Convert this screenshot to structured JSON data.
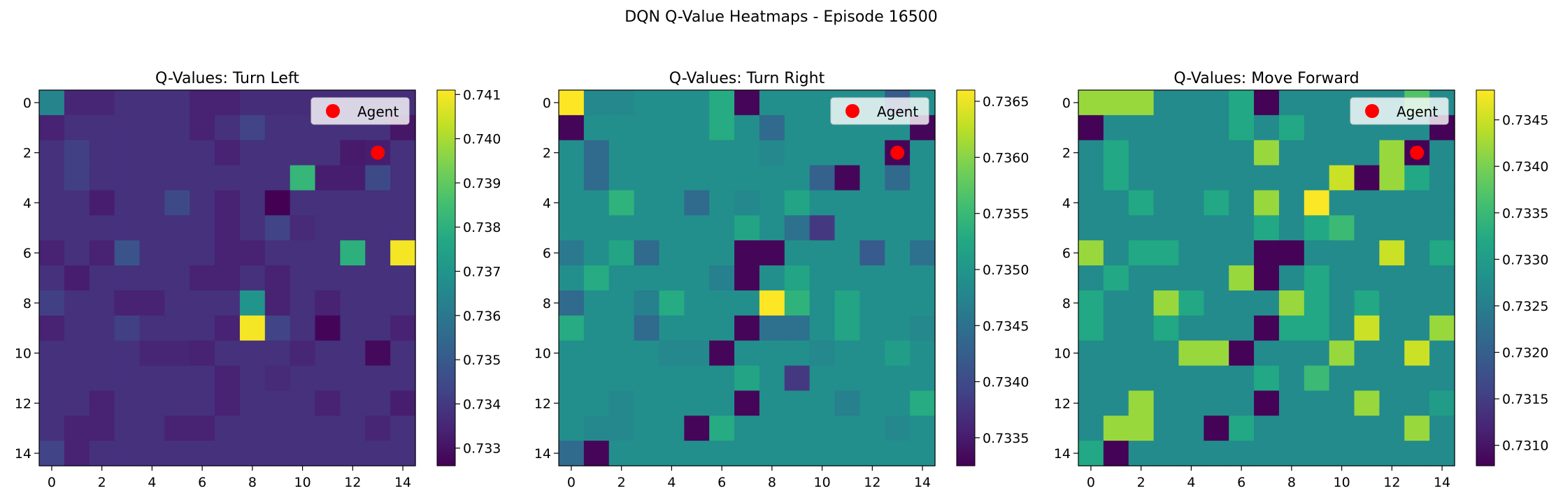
{
  "figure": {
    "title": "DQN Q-Value Heatmaps - Episode 16500"
  },
  "legend_label": "Agent",
  "agent_position": {
    "row": 2,
    "col": 13
  },
  "chart_data": [
    {
      "type": "heatmap",
      "title": "Q-Values: Turn Left",
      "xticks": [
        0,
        2,
        4,
        6,
        8,
        10,
        12,
        14
      ],
      "yticks": [
        0,
        2,
        4,
        6,
        8,
        10,
        12,
        14
      ],
      "colorbar": {
        "min": 0.7326,
        "max": 0.7411,
        "ticks": [
          "0.733",
          "0.734",
          "0.735",
          "0.736",
          "0.737",
          "0.738",
          "0.739",
          "0.740",
          "0.741"
        ]
      },
      "values": [
        [
          0.7364,
          0.7335,
          0.7335,
          0.7338,
          0.7338,
          0.7338,
          0.7334,
          0.7334,
          0.7337,
          0.7337,
          0.7337,
          0.7337,
          0.7337,
          0.7337,
          0.7337
        ],
        [
          0.7334,
          0.7338,
          0.7338,
          0.7338,
          0.7338,
          0.7338,
          0.7334,
          0.7338,
          0.7343,
          0.7338,
          0.7338,
          0.7338,
          0.7338,
          0.7338,
          0.7331
        ],
        [
          0.7338,
          0.7342,
          0.7338,
          0.7338,
          0.7338,
          0.7338,
          0.7338,
          0.7334,
          0.7338,
          0.7338,
          0.7338,
          0.7338,
          0.7332,
          0.7333,
          0.7338
        ],
        [
          0.7338,
          0.7342,
          0.7338,
          0.7338,
          0.7338,
          0.7338,
          0.7338,
          0.7338,
          0.7338,
          0.7338,
          0.7382,
          0.7333,
          0.7333,
          0.7345,
          0.7338
        ],
        [
          0.7338,
          0.7338,
          0.7333,
          0.7338,
          0.7338,
          0.7345,
          0.7338,
          0.7334,
          0.7338,
          0.7326,
          0.7338,
          0.7338,
          0.7338,
          0.7338,
          0.7338
        ],
        [
          0.7338,
          0.7338,
          0.7338,
          0.7338,
          0.7338,
          0.7338,
          0.7338,
          0.7334,
          0.7338,
          0.7343,
          0.7336,
          0.7338,
          0.7338,
          0.7338,
          0.7338
        ],
        [
          0.7334,
          0.7338,
          0.7334,
          0.7348,
          0.7338,
          0.7338,
          0.7338,
          0.7334,
          0.7334,
          0.7338,
          0.7338,
          0.7338,
          0.738,
          0.7338,
          0.741
        ],
        [
          0.7338,
          0.7333,
          0.7338,
          0.7338,
          0.7338,
          0.7338,
          0.7334,
          0.7334,
          0.7338,
          0.7334,
          0.7338,
          0.7338,
          0.7338,
          0.7338,
          0.7338
        ],
        [
          0.7342,
          0.7338,
          0.7338,
          0.7334,
          0.7334,
          0.7338,
          0.7338,
          0.7338,
          0.737,
          0.7334,
          0.7338,
          0.7334,
          0.7338,
          0.7338,
          0.7338
        ],
        [
          0.7334,
          0.7338,
          0.7338,
          0.7342,
          0.7338,
          0.7338,
          0.7338,
          0.7334,
          0.741,
          0.7343,
          0.7338,
          0.7327,
          0.7338,
          0.7338,
          0.7334
        ],
        [
          0.7338,
          0.7338,
          0.7338,
          0.7338,
          0.7335,
          0.7335,
          0.7334,
          0.7338,
          0.7338,
          0.7338,
          0.7335,
          0.7338,
          0.7338,
          0.7328,
          0.7338
        ],
        [
          0.7338,
          0.7338,
          0.7338,
          0.7338,
          0.7338,
          0.7338,
          0.7338,
          0.7334,
          0.7338,
          0.7336,
          0.7338,
          0.7338,
          0.7338,
          0.7338,
          0.7338
        ],
        [
          0.7338,
          0.7338,
          0.7334,
          0.7338,
          0.7338,
          0.7338,
          0.7338,
          0.7334,
          0.7338,
          0.7338,
          0.7338,
          0.7334,
          0.7338,
          0.7338,
          0.7333
        ],
        [
          0.7338,
          0.7334,
          0.7334,
          0.7338,
          0.7338,
          0.7334,
          0.7334,
          0.7338,
          0.7338,
          0.7338,
          0.7338,
          0.7338,
          0.7338,
          0.7335,
          0.7338
        ],
        [
          0.7343,
          0.7334,
          0.7338,
          0.7338,
          0.7338,
          0.7338,
          0.7338,
          0.7338,
          0.7338,
          0.7338,
          0.7338,
          0.7338,
          0.7338,
          0.7338,
          0.7338
        ]
      ]
    },
    {
      "type": "heatmap",
      "title": "Q-Values: Turn Right",
      "xticks": [
        0,
        2,
        4,
        6,
        8,
        10,
        12,
        14
      ],
      "yticks": [
        0,
        2,
        4,
        6,
        8,
        10,
        12,
        14
      ],
      "colorbar": {
        "min": 0.73325,
        "max": 0.7366,
        "ticks": [
          "0.7335",
          "0.7340",
          "0.7345",
          "0.7350",
          "0.7355",
          "0.7360",
          "0.7365"
        ]
      },
      "values": [
        [
          0.7366,
          0.7348,
          0.7348,
          0.7349,
          0.7349,
          0.7349,
          0.7353,
          0.7333,
          0.7349,
          0.7349,
          0.7349,
          0.7349,
          0.7349,
          0.7342,
          0.7349
        ],
        [
          0.7333,
          0.7349,
          0.7349,
          0.7349,
          0.7349,
          0.7349,
          0.7353,
          0.7349,
          0.7344,
          0.7349,
          0.7349,
          0.7349,
          0.7349,
          0.7349,
          0.7333
        ],
        [
          0.7349,
          0.7344,
          0.7349,
          0.7349,
          0.7349,
          0.7349,
          0.7349,
          0.7349,
          0.7348,
          0.7349,
          0.7349,
          0.7349,
          0.7349,
          0.7333,
          0.7349
        ],
        [
          0.7349,
          0.7344,
          0.7349,
          0.7349,
          0.7349,
          0.7349,
          0.7349,
          0.7349,
          0.7349,
          0.7349,
          0.7343,
          0.7333,
          0.7349,
          0.7344,
          0.7349
        ],
        [
          0.7349,
          0.7349,
          0.7354,
          0.7349,
          0.7349,
          0.7344,
          0.7349,
          0.7348,
          0.7349,
          0.7352,
          0.7349,
          0.7349,
          0.7349,
          0.7349,
          0.7349
        ],
        [
          0.7349,
          0.7349,
          0.7349,
          0.7349,
          0.7349,
          0.7349,
          0.7349,
          0.7352,
          0.7349,
          0.7345,
          0.7338,
          0.7349,
          0.7349,
          0.7349,
          0.7349
        ],
        [
          0.7346,
          0.7349,
          0.7352,
          0.7344,
          0.7349,
          0.7349,
          0.7349,
          0.7333,
          0.7333,
          0.7349,
          0.7349,
          0.7349,
          0.7342,
          0.7349,
          0.7345
        ],
        [
          0.7349,
          0.7353,
          0.7349,
          0.7349,
          0.7349,
          0.7349,
          0.7347,
          0.7333,
          0.7349,
          0.7352,
          0.7349,
          0.7349,
          0.7349,
          0.7349,
          0.7349
        ],
        [
          0.7344,
          0.7349,
          0.7349,
          0.7347,
          0.7353,
          0.7349,
          0.7349,
          0.7349,
          0.7366,
          0.7354,
          0.7349,
          0.7352,
          0.7349,
          0.7349,
          0.7349
        ],
        [
          0.7353,
          0.7349,
          0.7349,
          0.7344,
          0.7349,
          0.7349,
          0.7349,
          0.7333,
          0.7345,
          0.7345,
          0.7349,
          0.7352,
          0.7349,
          0.7349,
          0.7348
        ],
        [
          0.7349,
          0.7349,
          0.7349,
          0.7349,
          0.7348,
          0.7348,
          0.7333,
          0.7349,
          0.7349,
          0.7349,
          0.7348,
          0.7349,
          0.7349,
          0.7351,
          0.7349
        ],
        [
          0.7349,
          0.7349,
          0.7349,
          0.7349,
          0.7349,
          0.7349,
          0.7349,
          0.7352,
          0.7349,
          0.7338,
          0.7349,
          0.7349,
          0.7349,
          0.7349,
          0.7349
        ],
        [
          0.7349,
          0.7349,
          0.7348,
          0.7349,
          0.7349,
          0.7349,
          0.7349,
          0.7333,
          0.7349,
          0.7349,
          0.7349,
          0.7347,
          0.7349,
          0.7349,
          0.7353
        ],
        [
          0.7349,
          0.7348,
          0.7348,
          0.7349,
          0.7349,
          0.7333,
          0.7353,
          0.7349,
          0.7349,
          0.7349,
          0.7349,
          0.7349,
          0.7349,
          0.7348,
          0.7349
        ],
        [
          0.7344,
          0.7333,
          0.7349,
          0.7349,
          0.7349,
          0.7349,
          0.7349,
          0.7349,
          0.7349,
          0.7349,
          0.7349,
          0.7349,
          0.7349,
          0.7349,
          0.7349
        ]
      ]
    },
    {
      "type": "heatmap",
      "title": "Q-Values: Move Forward",
      "xticks": [
        0,
        2,
        4,
        6,
        8,
        10,
        12,
        14
      ],
      "yticks": [
        0,
        2,
        4,
        6,
        8,
        10,
        12,
        14
      ],
      "colorbar": {
        "min": 0.73078,
        "max": 0.73482,
        "ticks": [
          "0.7310",
          "0.7315",
          "0.7320",
          "0.7325",
          "0.7330",
          "0.7335",
          "0.7340",
          "0.7345"
        ]
      },
      "values": [
        [
          0.7342,
          0.7342,
          0.7342,
          0.7327,
          0.7327,
          0.7327,
          0.7332,
          0.7308,
          0.7327,
          0.7327,
          0.7327,
          0.7327,
          0.7327,
          0.7337,
          0.7327
        ],
        [
          0.7308,
          0.7327,
          0.7327,
          0.7327,
          0.7327,
          0.7327,
          0.7332,
          0.7327,
          0.7332,
          0.7327,
          0.7327,
          0.7327,
          0.7327,
          0.7327,
          0.7308
        ],
        [
          0.7327,
          0.7332,
          0.7327,
          0.7327,
          0.7327,
          0.7327,
          0.7327,
          0.7342,
          0.7327,
          0.7327,
          0.7327,
          0.7327,
          0.7342,
          0.7308,
          0.7327
        ],
        [
          0.7327,
          0.7332,
          0.7327,
          0.7327,
          0.7327,
          0.7327,
          0.7327,
          0.7327,
          0.7327,
          0.7327,
          0.7345,
          0.7308,
          0.7342,
          0.7332,
          0.7327
        ],
        [
          0.7327,
          0.7327,
          0.7332,
          0.7327,
          0.7327,
          0.7332,
          0.7327,
          0.7342,
          0.7327,
          0.7348,
          0.7327,
          0.7327,
          0.7327,
          0.7327,
          0.7327
        ],
        [
          0.7327,
          0.7327,
          0.7327,
          0.7327,
          0.7327,
          0.7327,
          0.7327,
          0.7332,
          0.7327,
          0.7332,
          0.7335,
          0.7327,
          0.7327,
          0.7327,
          0.7327
        ],
        [
          0.7342,
          0.7327,
          0.7332,
          0.7332,
          0.7327,
          0.7327,
          0.7327,
          0.7308,
          0.7308,
          0.7327,
          0.7327,
          0.7327,
          0.7345,
          0.7327,
          0.7332
        ],
        [
          0.7327,
          0.7332,
          0.7327,
          0.7327,
          0.7327,
          0.7327,
          0.7342,
          0.7308,
          0.7327,
          0.7332,
          0.7327,
          0.7327,
          0.7327,
          0.7327,
          0.7327
        ],
        [
          0.7332,
          0.7327,
          0.7327,
          0.7342,
          0.7332,
          0.7327,
          0.7327,
          0.7327,
          0.7342,
          0.7332,
          0.7327,
          0.7332,
          0.7327,
          0.7327,
          0.7327
        ],
        [
          0.7332,
          0.7327,
          0.7327,
          0.7332,
          0.7327,
          0.7327,
          0.7327,
          0.7308,
          0.7332,
          0.7332,
          0.7327,
          0.7345,
          0.7327,
          0.7327,
          0.7342
        ],
        [
          0.7327,
          0.7327,
          0.7327,
          0.7327,
          0.7342,
          0.7342,
          0.7308,
          0.7327,
          0.7327,
          0.7327,
          0.7342,
          0.7327,
          0.7327,
          0.7345,
          0.7327
        ],
        [
          0.7327,
          0.7327,
          0.7327,
          0.7327,
          0.7327,
          0.7327,
          0.7327,
          0.7332,
          0.7327,
          0.7335,
          0.7327,
          0.7327,
          0.7327,
          0.7327,
          0.7327
        ],
        [
          0.7327,
          0.7327,
          0.7342,
          0.7327,
          0.7327,
          0.7327,
          0.7327,
          0.7308,
          0.7327,
          0.7327,
          0.7327,
          0.7342,
          0.7327,
          0.7327,
          0.733
        ],
        [
          0.7327,
          0.7342,
          0.7342,
          0.7327,
          0.7327,
          0.7308,
          0.7332,
          0.7327,
          0.7327,
          0.7327,
          0.7327,
          0.7327,
          0.7327,
          0.7342,
          0.7327
        ],
        [
          0.7332,
          0.7308,
          0.7327,
          0.7327,
          0.7327,
          0.7327,
          0.7327,
          0.7327,
          0.7327,
          0.7327,
          0.7327,
          0.7327,
          0.7327,
          0.7327,
          0.7327
        ]
      ]
    }
  ]
}
